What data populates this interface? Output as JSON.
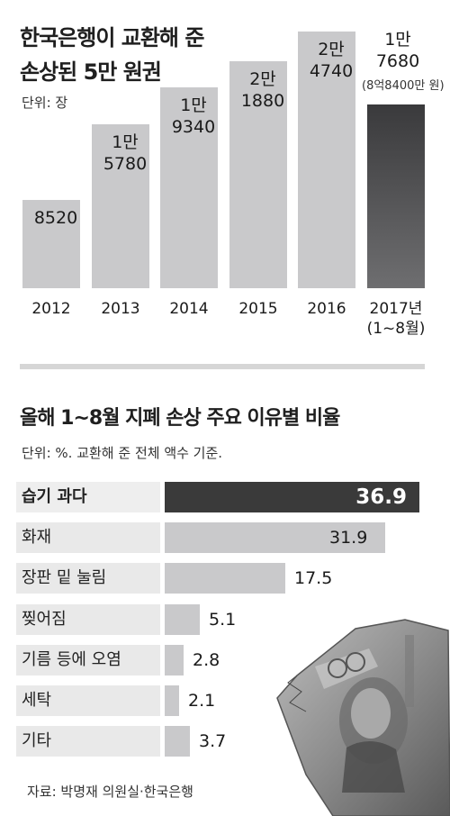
{
  "top": {
    "title_line1": "한국은행이 교환해 준",
    "title_line2": "손상된 5만 원권",
    "unit": "단위: 장"
  },
  "bottom": {
    "title": "올해 1~8월 지폐 손상 주요 이유별 비율",
    "unit": "단위: %. 교환해 준 전체 액수 기준."
  },
  "source": "자료: 박명재 의원실·한국은행",
  "colors": {
    "bar": "#c9c9cb",
    "highlight": "#3a3a3a"
  },
  "chart_data": [
    {
      "type": "bar",
      "title": "한국은행이 교환해 준 손상된 5만 원권",
      "ylabel": "단위: 장",
      "categories": [
        "2012",
        "2013",
        "2014",
        "2015",
        "2016",
        "2017년\n(1~8월)"
      ],
      "values": [
        8520,
        15780,
        19340,
        21880,
        24740,
        17680
      ],
      "value_labels": [
        "8520",
        "1만\n5780",
        "1만\n9340",
        "2만\n1880",
        "2만\n4740",
        "1만\n7680"
      ],
      "annotation": "(8억8400만 원)",
      "highlight_index": 5,
      "ylim": [
        0,
        26000
      ]
    },
    {
      "type": "bar",
      "orientation": "horizontal",
      "title": "올해 1~8월 지폐 손상 주요 이유별 비율",
      "xlabel": "단위: %. 교환해 준 전체 액수 기준.",
      "categories": [
        "습기 과다",
        "화재",
        "장판 밑 눌림",
        "찢어짐",
        "기름 등에 오염",
        "세탁",
        "기타"
      ],
      "values": [
        36.9,
        31.9,
        17.5,
        5.1,
        2.8,
        2.1,
        3.7
      ],
      "value_labels": [
        "36.9",
        "31.9",
        "17.5",
        "5.1",
        "2.8",
        "2.1",
        "3.7"
      ],
      "highlight_index": 0,
      "xlim": [
        0,
        36.9
      ]
    }
  ]
}
